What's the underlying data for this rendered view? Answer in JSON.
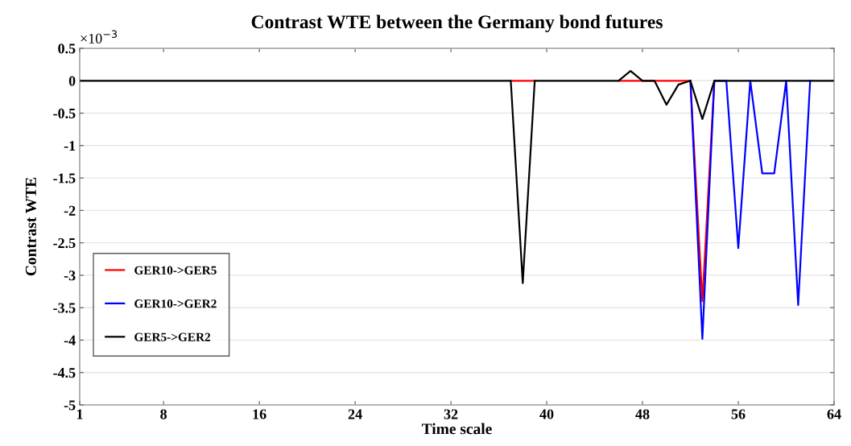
{
  "chart_data": {
    "type": "line",
    "title": "Contrast WTE between the Germany bond futures",
    "xlabel": "Time scale",
    "ylabel": "Contrast WTE",
    "annotations": [
      "×10$^{−3}$"
    ],
    "x": [
      1,
      2,
      3,
      4,
      5,
      6,
      7,
      8,
      9,
      10,
      11,
      12,
      13,
      14,
      15,
      16,
      17,
      18,
      19,
      20,
      21,
      22,
      23,
      24,
      25,
      26,
      27,
      28,
      29,
      30,
      31,
      32,
      33,
      34,
      35,
      36,
      37,
      38,
      39,
      40,
      41,
      42,
      43,
      44,
      45,
      46,
      47,
      48,
      49,
      50,
      51,
      52,
      53,
      54,
      55,
      56,
      57,
      58,
      59,
      60,
      61,
      62,
      63,
      64
    ],
    "series": [
      {
        "name": "GER10->GER5",
        "color": "#ff0000",
        "values": [
          null,
          null,
          null,
          null,
          null,
          null,
          null,
          null,
          null,
          null,
          null,
          null,
          null,
          null,
          null,
          null,
          null,
          null,
          null,
          null,
          null,
          null,
          null,
          null,
          null,
          null,
          null,
          null,
          null,
          null,
          null,
          null,
          null,
          null,
          null,
          null,
          0,
          0,
          0,
          null,
          null,
          null,
          null,
          null,
          null,
          0,
          0,
          0,
          0,
          0,
          0,
          0,
          -3.4,
          0,
          null,
          null,
          null,
          null,
          null,
          null,
          null,
          null,
          null,
          null
        ]
      },
      {
        "name": "GER10->GER2",
        "color": "#0000ff",
        "values": [
          null,
          null,
          null,
          null,
          null,
          null,
          null,
          null,
          null,
          null,
          null,
          null,
          null,
          null,
          null,
          null,
          null,
          null,
          null,
          null,
          null,
          null,
          null,
          null,
          null,
          null,
          null,
          null,
          null,
          null,
          null,
          null,
          null,
          null,
          null,
          null,
          null,
          null,
          null,
          null,
          null,
          null,
          null,
          null,
          null,
          null,
          null,
          null,
          null,
          null,
          null,
          0,
          -3.98,
          0,
          0,
          -2.58,
          0,
          -1.43,
          -1.43,
          0,
          -3.46,
          0,
          null,
          null
        ]
      },
      {
        "name": "GER5->GER2",
        "color": "#000000",
        "values": [
          0,
          0,
          0,
          0,
          0,
          0,
          0,
          0,
          0,
          0,
          0,
          0,
          0,
          0,
          0,
          0,
          0,
          0,
          0,
          0,
          0,
          0,
          0,
          0,
          0,
          0,
          0,
          0,
          0,
          0,
          0,
          0,
          0,
          0,
          0,
          0,
          0,
          -3.12,
          0,
          0,
          0,
          0,
          0,
          0,
          0,
          0,
          0.15,
          0,
          0,
          -0.37,
          -0.06,
          0,
          -0.59,
          0,
          0,
          0,
          0,
          0,
          0,
          0,
          0,
          0,
          0,
          0
        ]
      }
    ],
    "xlim": [
      1,
      64
    ],
    "xticks": [
      1,
      8,
      16,
      24,
      32,
      40,
      48,
      56,
      64
    ],
    "ylim": [
      -5,
      0.5
    ],
    "yticks": [
      0.5,
      0,
      -0.5,
      -1,
      -1.5,
      -2,
      -2.5,
      -3,
      -3.5,
      -4,
      -4.5,
      -5
    ],
    "grid": "y",
    "legend": "bottom left",
    "line_style": "solid",
    "marker": "none"
  }
}
